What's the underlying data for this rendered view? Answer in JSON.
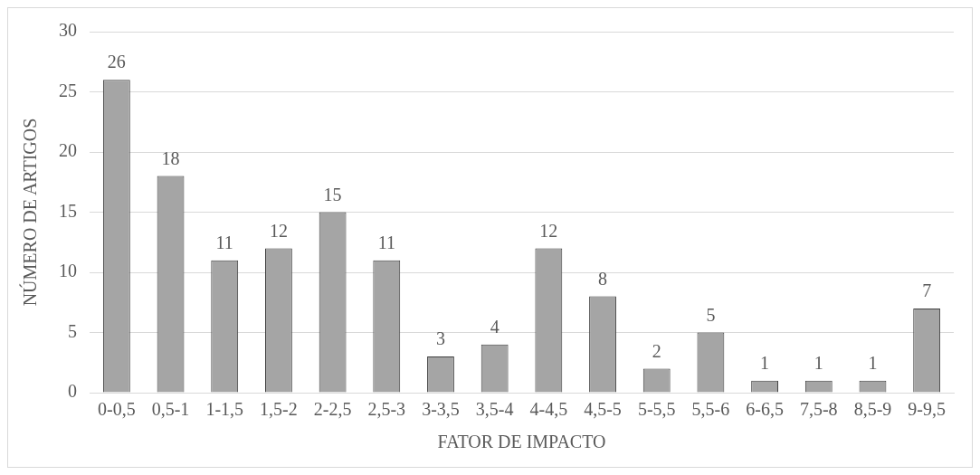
{
  "chart_data": {
    "type": "bar",
    "xlabel": "FATOR DE IMPACTO",
    "ylabel": "NÚMERO DE ARTIGOS",
    "categories": [
      "0-0,5",
      "0,5-1",
      "1-1,5",
      "1,5-2",
      "2-2,5",
      "2,5-3",
      "3-3,5",
      "3,5-4",
      "4-4,5",
      "4,5-5",
      "5-5,5",
      "5,5-6",
      "6-6,5",
      "7,5-8",
      "8,5-9",
      "9-9,5"
    ],
    "values": [
      26,
      18,
      11,
      12,
      15,
      11,
      3,
      4,
      12,
      8,
      2,
      5,
      1,
      1,
      1,
      7
    ],
    "color": "#a5a5a5",
    "ylim": [
      0,
      30
    ],
    "yticks": [
      0,
      5,
      10,
      15,
      20,
      25,
      30
    ],
    "grid": "y",
    "data_labels": true,
    "legend": false
  }
}
